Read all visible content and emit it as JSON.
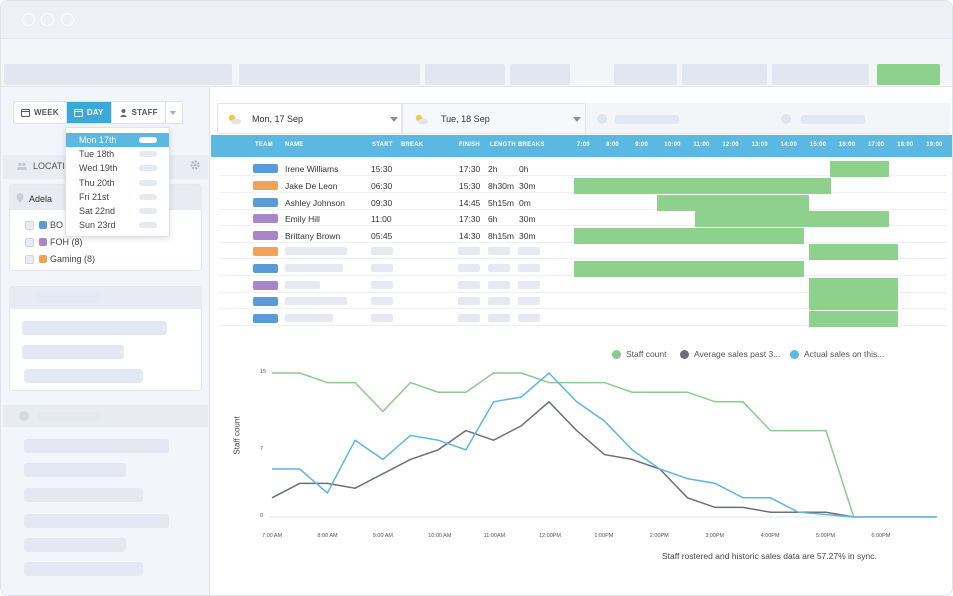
{
  "window": {
    "title": ""
  },
  "view_tabs": [
    {
      "label": "WEEK",
      "icon": "calendar-icon",
      "active": false
    },
    {
      "label": "DAY",
      "icon": "calendar-icon",
      "active": true
    },
    {
      "label": "STAFF",
      "icon": "user-icon",
      "active": false
    }
  ],
  "day_dropdown": {
    "items": [
      "Mon 17th",
      "Tue 18th",
      "Wed 19th",
      "Thu 20th",
      "Fri 21st",
      "Sat 22nd",
      "Sun 23rd"
    ],
    "selected": "Mon 17th"
  },
  "sidebar": {
    "locations_label": "LOCATI",
    "location_name": "Adela",
    "filters": [
      {
        "label": "BO",
        "color": "#5b9bd5"
      },
      {
        "label": "FOH (8)",
        "color": "#a986c9"
      },
      {
        "label": "Gaming (8)",
        "color": "#f0a257"
      }
    ]
  },
  "day_selectors": [
    {
      "label": "Mon, 17 Sep",
      "icon": "sun-cloud-icon"
    },
    {
      "label": "Tue, 18 Sep",
      "icon": "sun-cloud-icon"
    }
  ],
  "table": {
    "headers": [
      "TEAM",
      "NAME",
      "START",
      "BREAK",
      "FINISH",
      "LENGTH",
      "BREAKS"
    ],
    "hours": [
      "7:00",
      "8:00",
      "9:00",
      "10:00",
      "11:00",
      "12:00",
      "13:00",
      "14:00",
      "15:00",
      "16:00",
      "17:00",
      "18:00",
      "19:00"
    ],
    "rows": [
      {
        "team_color": "#5b9bd5",
        "name": "Irene Williams",
        "start": "15:30",
        "break": "",
        "finish": "17:30",
        "length": "2h",
        "breaks": "0h"
      },
      {
        "team_color": "#f0a257",
        "name": "Jake De Leon",
        "start": "06:30",
        "break": "",
        "finish": "15:30",
        "length": "8h30m",
        "breaks": "30m"
      },
      {
        "team_color": "#5b9bd5",
        "name": "Ashley Johnson",
        "start": "09:30",
        "break": "",
        "finish": "14:45",
        "length": "5h15m",
        "breaks": "0m"
      },
      {
        "team_color": "#a986c9",
        "name": "Emily Hill",
        "start": "11:00",
        "break": "",
        "finish": "17:30",
        "length": "6h",
        "breaks": "30m"
      },
      {
        "team_color": "#a986c9",
        "name": "Brittany Brown",
        "start": "05:45",
        "break": "",
        "finish": "14:30",
        "length": "8h15m",
        "breaks": "30m"
      }
    ],
    "placeholder_rows": [
      {
        "team_color": "#f0a257"
      },
      {
        "team_color": "#5b9bd5"
      },
      {
        "team_color": "#a986c9"
      },
      {
        "team_color": "#5b9bd5"
      },
      {
        "team_color": "#5b9bd5"
      }
    ]
  },
  "chart_data": {
    "type": "line",
    "title": "",
    "xlabel": "",
    "ylabel": "Staff count",
    "x": [
      "7:00 AM",
      "8:00 AM",
      "9:00 AM",
      "10:00 AM",
      "11:00AM",
      "12:00PM",
      "1:00PM",
      "2:00PM",
      "3:00PM",
      "4:00PM",
      "5:00PM",
      "6:00PM"
    ],
    "yticks": [
      0,
      7,
      15
    ],
    "ylim": [
      0,
      15
    ],
    "series": [
      {
        "name": "Staff count",
        "color": "#8cc98c",
        "points": [
          [
            0,
            15
          ],
          [
            0.5,
            15
          ],
          [
            1,
            14
          ],
          [
            1.5,
            14
          ],
          [
            2,
            11
          ],
          [
            2.5,
            14
          ],
          [
            3,
            13
          ],
          [
            3.5,
            13
          ],
          [
            4,
            15
          ],
          [
            4.5,
            15
          ],
          [
            5,
            14
          ],
          [
            6,
            14
          ],
          [
            6.5,
            13
          ],
          [
            7.5,
            13
          ],
          [
            8,
            12
          ],
          [
            8.5,
            12
          ],
          [
            9,
            9
          ],
          [
            10,
            9
          ],
          [
            10.5,
            0
          ],
          [
            12,
            0
          ]
        ]
      },
      {
        "name": "Average sales past 3...",
        "color": "#6b6f76",
        "points": [
          [
            0,
            2
          ],
          [
            0.5,
            3.5
          ],
          [
            1,
            3.5
          ],
          [
            1.5,
            3
          ],
          [
            2,
            4.5
          ],
          [
            2.5,
            6
          ],
          [
            3,
            7
          ],
          [
            3.5,
            9
          ],
          [
            4,
            8
          ],
          [
            4.5,
            9.5
          ],
          [
            5,
            12
          ],
          [
            5.5,
            9
          ],
          [
            6,
            6.5
          ],
          [
            6.5,
            6
          ],
          [
            7,
            5
          ],
          [
            7.5,
            2
          ],
          [
            8,
            1
          ],
          [
            8.5,
            1
          ],
          [
            9,
            0.5
          ],
          [
            10,
            0.5
          ],
          [
            10.5,
            0
          ]
        ]
      },
      {
        "name": "Actual sales on this...",
        "color": "#5bb8e0",
        "points": [
          [
            0,
            5
          ],
          [
            0.5,
            5
          ],
          [
            1,
            2.5
          ],
          [
            1.5,
            8
          ],
          [
            2,
            6
          ],
          [
            2.5,
            8.5
          ],
          [
            3,
            8
          ],
          [
            3.5,
            7
          ],
          [
            4,
            12
          ],
          [
            4.5,
            12.5
          ],
          [
            5,
            15
          ],
          [
            5.5,
            12
          ],
          [
            6,
            10
          ],
          [
            6.5,
            7
          ],
          [
            7,
            5
          ],
          [
            7.5,
            4
          ],
          [
            8,
            3.5
          ],
          [
            8.5,
            2
          ],
          [
            9,
            2
          ],
          [
            9.5,
            0.5
          ],
          [
            10.5,
            0
          ],
          [
            12,
            0
          ]
        ]
      }
    ],
    "legend_position": "top-right",
    "grid": false
  },
  "footnote": "Staff rostered and historic sales data are 57.27% in sync."
}
